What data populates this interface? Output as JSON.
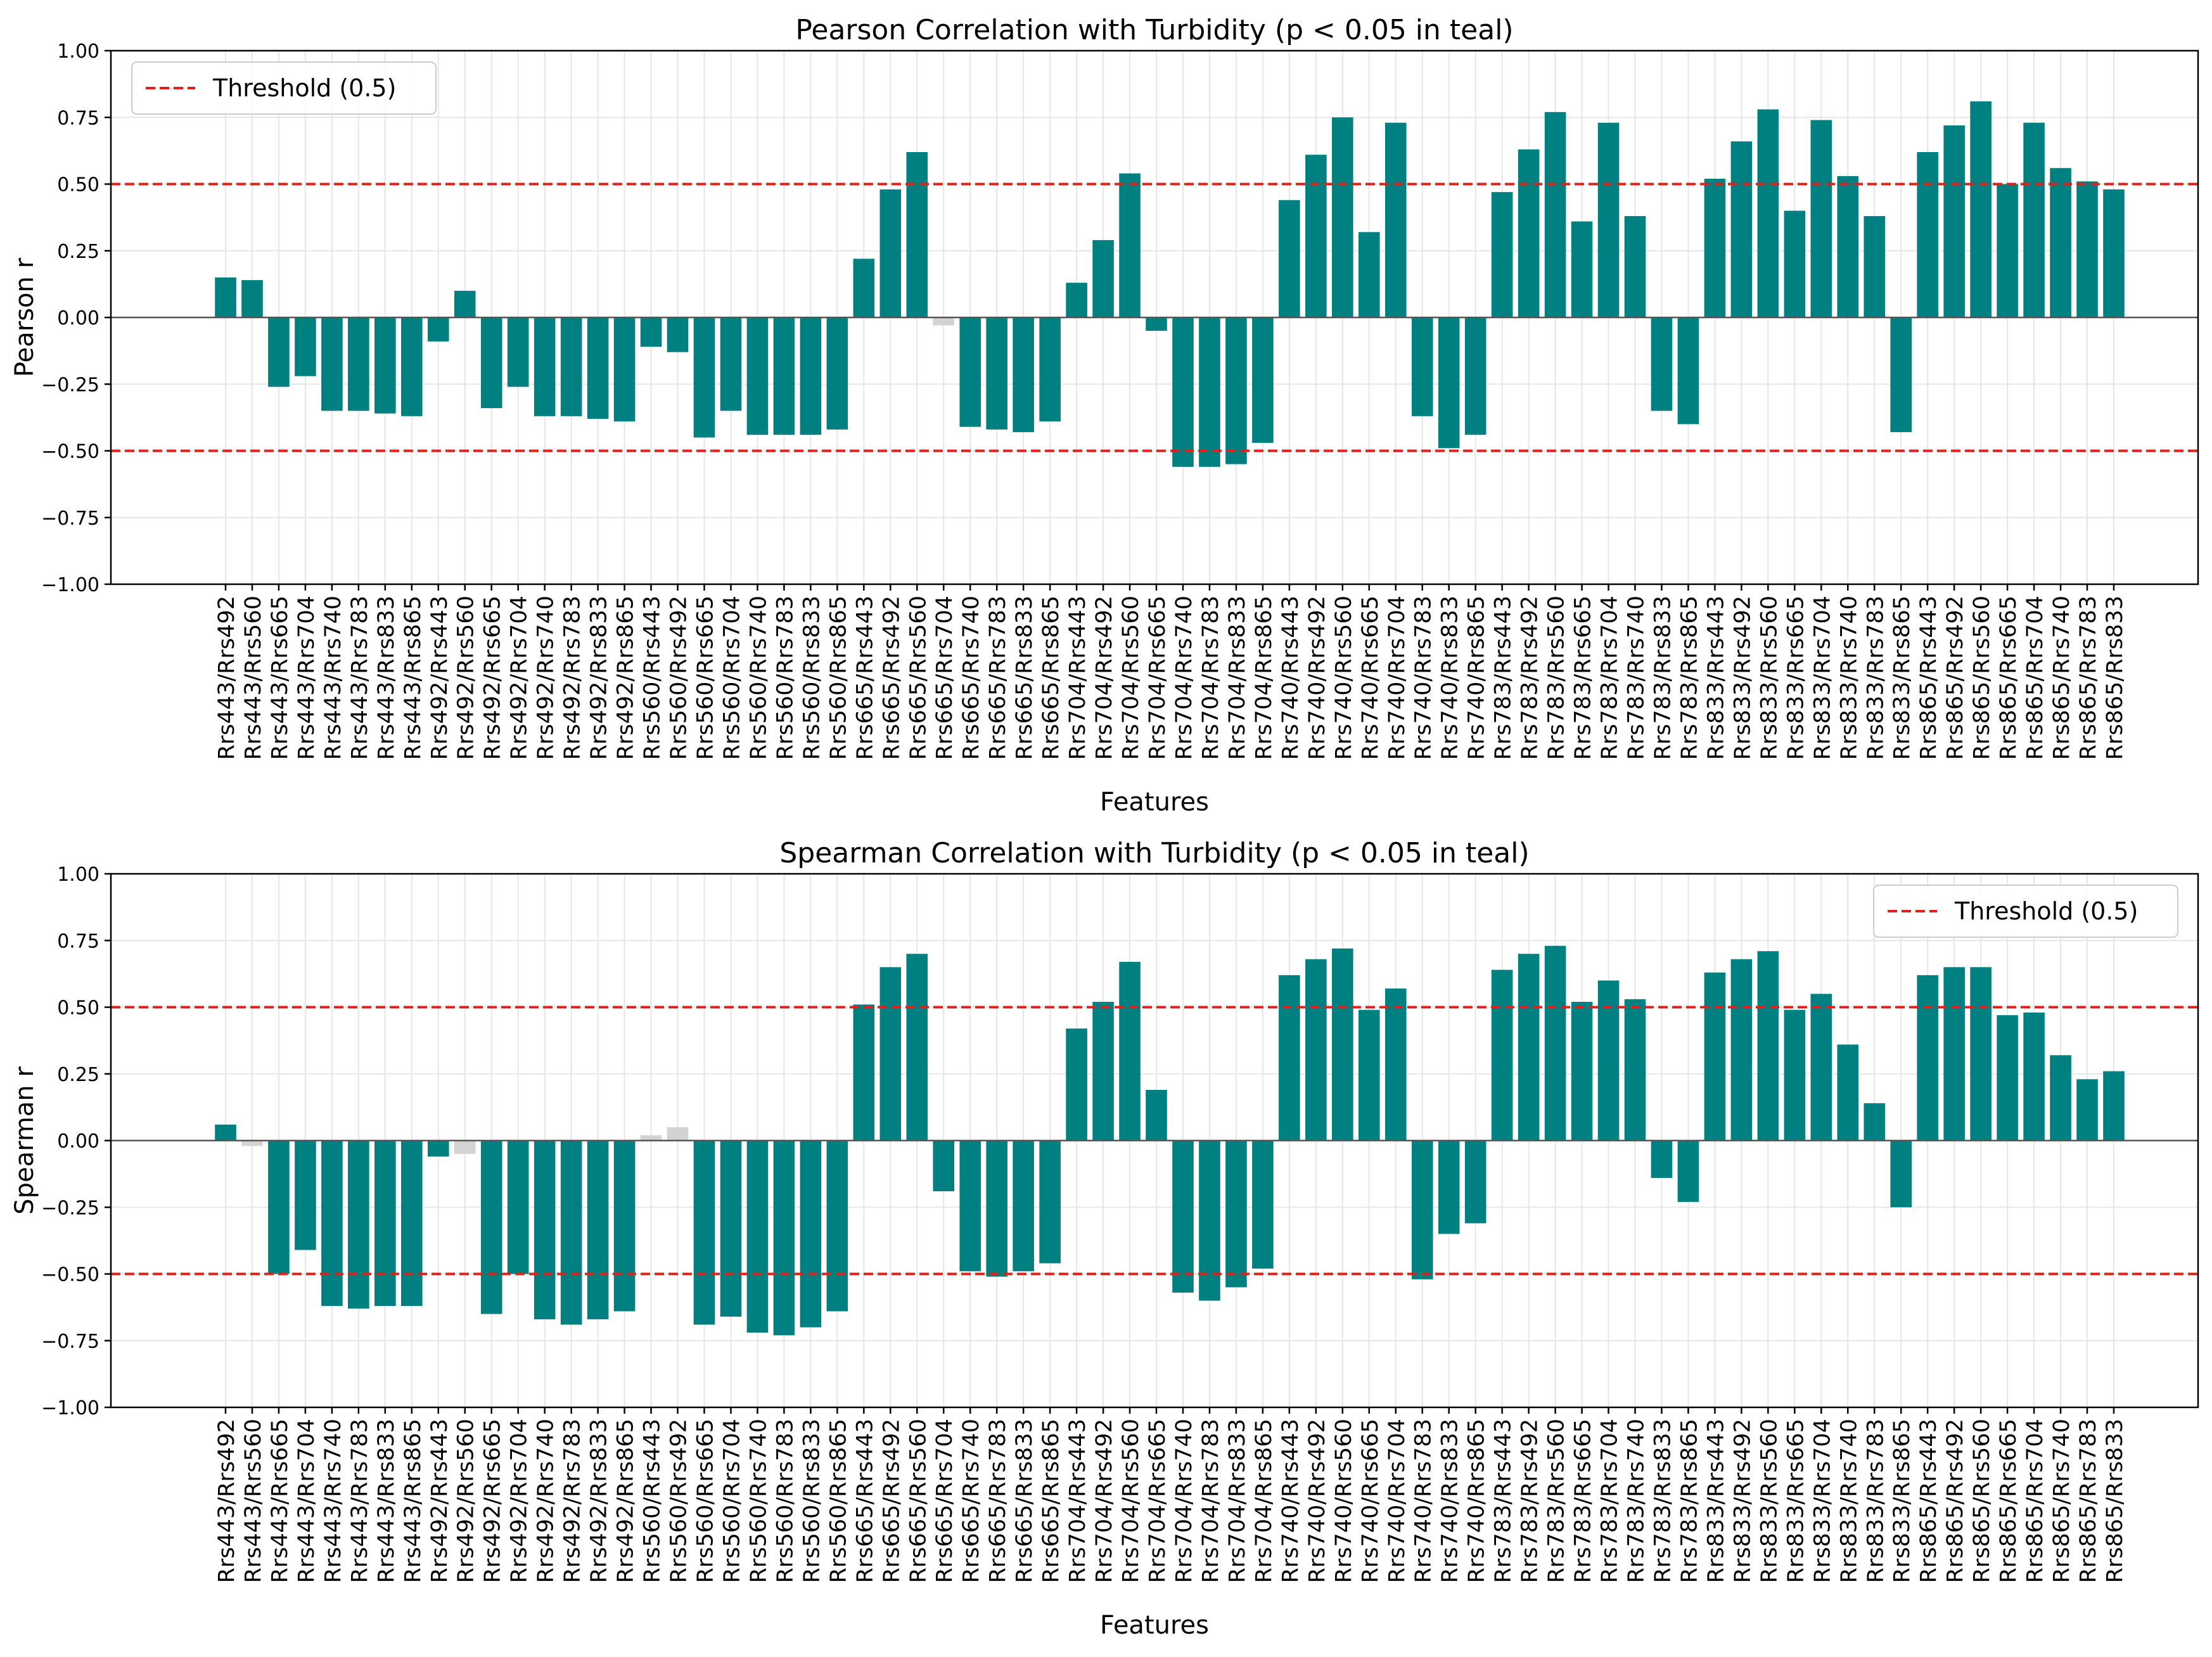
{
  "colors": {
    "significant": "#008080",
    "not_significant": "#d3d3d3",
    "threshold": "#e0201b",
    "zero_line": "#555555",
    "grid": "#e6e6e6",
    "axis": "#000000"
  },
  "chart_data": [
    {
      "type": "bar",
      "title": "Pearson Correlation with Turbidity (p < 0.05 in teal)",
      "xlabel": "Features",
      "ylabel": "Pearson r",
      "ylim": [
        -1.0,
        1.0
      ],
      "yticks": [
        "1.00",
        "0.75",
        "0.50",
        "0.25",
        "0.00",
        "−0.25",
        "−0.50",
        "−0.75",
        "−1.00"
      ],
      "grid": true,
      "legend": {
        "label": "Threshold (0.5)",
        "position": "top-left"
      },
      "thresholds": [
        0.5,
        -0.5
      ],
      "categories": [
        "Rrs443/Rrs492",
        "Rrs443/Rrs560",
        "Rrs443/Rrs665",
        "Rrs443/Rrs704",
        "Rrs443/Rrs740",
        "Rrs443/Rrs783",
        "Rrs443/Rrs833",
        "Rrs443/Rrs865",
        "Rrs492/Rrs443",
        "Rrs492/Rrs560",
        "Rrs492/Rrs665",
        "Rrs492/Rrs704",
        "Rrs492/Rrs740",
        "Rrs492/Rrs783",
        "Rrs492/Rrs833",
        "Rrs492/Rrs865",
        "Rrs560/Rrs443",
        "Rrs560/Rrs492",
        "Rrs560/Rrs665",
        "Rrs560/Rrs704",
        "Rrs560/Rrs740",
        "Rrs560/Rrs783",
        "Rrs560/Rrs833",
        "Rrs560/Rrs865",
        "Rrs665/Rrs443",
        "Rrs665/Rrs492",
        "Rrs665/Rrs560",
        "Rrs665/Rrs704",
        "Rrs665/Rrs740",
        "Rrs665/Rrs783",
        "Rrs665/Rrs833",
        "Rrs665/Rrs865",
        "Rrs704/Rrs443",
        "Rrs704/Rrs492",
        "Rrs704/Rrs560",
        "Rrs704/Rrs665",
        "Rrs704/Rrs740",
        "Rrs704/Rrs783",
        "Rrs704/Rrs833",
        "Rrs704/Rrs865",
        "Rrs740/Rrs443",
        "Rrs740/Rrs492",
        "Rrs740/Rrs560",
        "Rrs740/Rrs665",
        "Rrs740/Rrs704",
        "Rrs740/Rrs783",
        "Rrs740/Rrs833",
        "Rrs740/Rrs865",
        "Rrs783/Rrs443",
        "Rrs783/Rrs492",
        "Rrs783/Rrs560",
        "Rrs783/Rrs665",
        "Rrs783/Rrs704",
        "Rrs783/Rrs740",
        "Rrs783/Rrs833",
        "Rrs783/Rrs865",
        "Rrs833/Rrs443",
        "Rrs833/Rrs492",
        "Rrs833/Rrs560",
        "Rrs833/Rrs665",
        "Rrs833/Rrs704",
        "Rrs833/Rrs740",
        "Rrs833/Rrs783",
        "Rrs833/Rrs865",
        "Rrs865/Rrs443",
        "Rrs865/Rrs492",
        "Rrs865/Rrs560",
        "Rrs865/Rrs665",
        "Rrs865/Rrs704",
        "Rrs865/Rrs740",
        "Rrs865/Rrs783",
        "Rrs865/Rrs833"
      ],
      "values": [
        0.15,
        0.14,
        -0.26,
        -0.22,
        -0.35,
        -0.35,
        -0.36,
        -0.37,
        -0.09,
        0.1,
        -0.34,
        -0.26,
        -0.37,
        -0.37,
        -0.38,
        -0.39,
        -0.11,
        -0.13,
        -0.45,
        -0.35,
        -0.44,
        -0.44,
        -0.44,
        -0.42,
        0.22,
        0.48,
        0.62,
        -0.03,
        -0.41,
        -0.42,
        -0.43,
        -0.39,
        0.13,
        0.29,
        0.54,
        -0.05,
        -0.56,
        -0.56,
        -0.55,
        -0.47,
        0.44,
        0.61,
        0.75,
        0.32,
        0.73,
        -0.37,
        -0.49,
        -0.44,
        0.47,
        0.63,
        0.77,
        0.36,
        0.73,
        0.38,
        -0.35,
        -0.4,
        0.52,
        0.66,
        0.78,
        0.4,
        0.74,
        0.53,
        0.38,
        -0.43,
        0.62,
        0.72,
        0.81,
        0.5,
        0.73,
        0.56,
        0.51,
        0.48
      ],
      "significant": [
        true,
        true,
        true,
        true,
        true,
        true,
        true,
        true,
        true,
        true,
        true,
        true,
        true,
        true,
        true,
        true,
        true,
        true,
        true,
        true,
        true,
        true,
        true,
        true,
        true,
        true,
        true,
        false,
        true,
        true,
        true,
        true,
        true,
        true,
        true,
        true,
        true,
        true,
        true,
        true,
        true,
        true,
        true,
        true,
        true,
        true,
        true,
        true,
        true,
        true,
        true,
        true,
        true,
        true,
        true,
        true,
        true,
        true,
        true,
        true,
        true,
        true,
        true,
        true,
        true,
        true,
        true,
        true,
        true,
        true,
        true,
        true
      ]
    },
    {
      "type": "bar",
      "title": "Spearman Correlation with Turbidity (p < 0.05 in teal)",
      "xlabel": "Features",
      "ylabel": "Spearman r",
      "ylim": [
        -1.0,
        1.0
      ],
      "yticks": [
        "1.00",
        "0.75",
        "0.50",
        "0.25",
        "0.00",
        "−0.25",
        "−0.50",
        "−0.75",
        "−1.00"
      ],
      "grid": true,
      "legend": {
        "label": "Threshold (0.5)",
        "position": "top-right"
      },
      "thresholds": [
        0.5,
        -0.5
      ],
      "categories": [
        "Rrs443/Rrs492",
        "Rrs443/Rrs560",
        "Rrs443/Rrs665",
        "Rrs443/Rrs704",
        "Rrs443/Rrs740",
        "Rrs443/Rrs783",
        "Rrs443/Rrs833",
        "Rrs443/Rrs865",
        "Rrs492/Rrs443",
        "Rrs492/Rrs560",
        "Rrs492/Rrs665",
        "Rrs492/Rrs704",
        "Rrs492/Rrs740",
        "Rrs492/Rrs783",
        "Rrs492/Rrs833",
        "Rrs492/Rrs865",
        "Rrs560/Rrs443",
        "Rrs560/Rrs492",
        "Rrs560/Rrs665",
        "Rrs560/Rrs704",
        "Rrs560/Rrs740",
        "Rrs560/Rrs783",
        "Rrs560/Rrs833",
        "Rrs560/Rrs865",
        "Rrs665/Rrs443",
        "Rrs665/Rrs492",
        "Rrs665/Rrs560",
        "Rrs665/Rrs704",
        "Rrs665/Rrs740",
        "Rrs665/Rrs783",
        "Rrs665/Rrs833",
        "Rrs665/Rrs865",
        "Rrs704/Rrs443",
        "Rrs704/Rrs492",
        "Rrs704/Rrs560",
        "Rrs704/Rrs665",
        "Rrs704/Rrs740",
        "Rrs704/Rrs783",
        "Rrs704/Rrs833",
        "Rrs704/Rrs865",
        "Rrs740/Rrs443",
        "Rrs740/Rrs492",
        "Rrs740/Rrs560",
        "Rrs740/Rrs665",
        "Rrs740/Rrs704",
        "Rrs740/Rrs783",
        "Rrs740/Rrs833",
        "Rrs740/Rrs865",
        "Rrs783/Rrs443",
        "Rrs783/Rrs492",
        "Rrs783/Rrs560",
        "Rrs783/Rrs665",
        "Rrs783/Rrs704",
        "Rrs783/Rrs740",
        "Rrs783/Rrs833",
        "Rrs783/Rrs865",
        "Rrs833/Rrs443",
        "Rrs833/Rrs492",
        "Rrs833/Rrs560",
        "Rrs833/Rrs665",
        "Rrs833/Rrs704",
        "Rrs833/Rrs740",
        "Rrs833/Rrs783",
        "Rrs833/Rrs865",
        "Rrs865/Rrs443",
        "Rrs865/Rrs492",
        "Rrs865/Rrs560",
        "Rrs865/Rrs665",
        "Rrs865/Rrs704",
        "Rrs865/Rrs740",
        "Rrs865/Rrs783",
        "Rrs865/Rrs833"
      ],
      "values": [
        0.06,
        -0.02,
        -0.5,
        -0.41,
        -0.62,
        -0.63,
        -0.62,
        -0.62,
        -0.06,
        -0.05,
        -0.65,
        -0.5,
        -0.67,
        -0.69,
        -0.67,
        -0.64,
        0.02,
        0.05,
        -0.69,
        -0.66,
        -0.72,
        -0.73,
        -0.7,
        -0.64,
        0.51,
        0.65,
        0.7,
        -0.19,
        -0.49,
        -0.51,
        -0.49,
        -0.46,
        0.42,
        0.52,
        0.67,
        0.19,
        -0.57,
        -0.6,
        -0.55,
        -0.48,
        0.62,
        0.68,
        0.72,
        0.49,
        0.57,
        -0.52,
        -0.35,
        -0.31,
        0.64,
        0.7,
        0.73,
        0.52,
        0.6,
        0.53,
        -0.14,
        -0.23,
        0.63,
        0.68,
        0.71,
        0.49,
        0.55,
        0.36,
        0.14,
        -0.25,
        0.62,
        0.65,
        0.65,
        0.47,
        0.48,
        0.32,
        0.23,
        0.26
      ],
      "significant": [
        true,
        false,
        true,
        true,
        true,
        true,
        true,
        true,
        true,
        false,
        true,
        true,
        true,
        true,
        true,
        true,
        false,
        false,
        true,
        true,
        true,
        true,
        true,
        true,
        true,
        true,
        true,
        true,
        true,
        true,
        true,
        true,
        true,
        true,
        true,
        true,
        true,
        true,
        true,
        true,
        true,
        true,
        true,
        true,
        true,
        true,
        true,
        true,
        true,
        true,
        true,
        true,
        true,
        true,
        true,
        true,
        true,
        true,
        true,
        true,
        true,
        true,
        true,
        true,
        true,
        true,
        true,
        true,
        true,
        true,
        true,
        true
      ]
    }
  ]
}
